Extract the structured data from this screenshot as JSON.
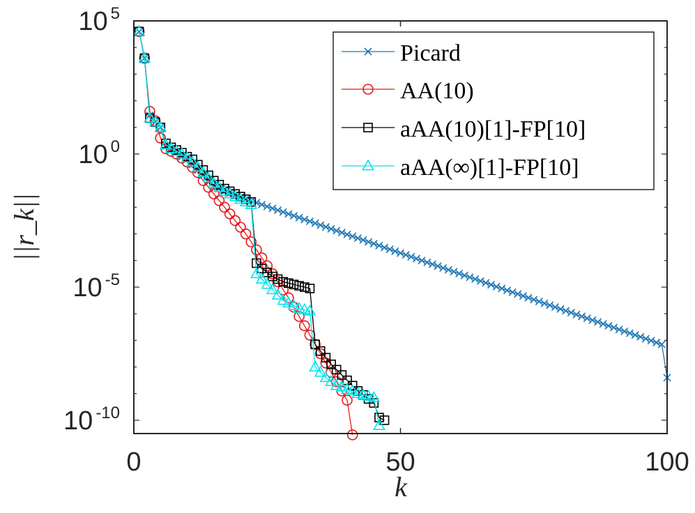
{
  "chart_data": {
    "type": "line",
    "title": "",
    "xlabel": "k",
    "ylabel": "||r_k||",
    "xlim": [
      0,
      100
    ],
    "ylim_log10": [
      -10.5,
      5.0
    ],
    "y_scale": "log",
    "grid": false,
    "legend_position": "top-right",
    "x_ticks": [
      {
        "value": 0,
        "label": "0"
      },
      {
        "value": 50,
        "label": "50"
      },
      {
        "value": 100,
        "label": "100"
      }
    ],
    "y_ticks": [
      {
        "value": 5,
        "base": "10",
        "exp": "5"
      },
      {
        "value": 0,
        "base": "10",
        "exp": "0"
      },
      {
        "value": -5,
        "base": "10",
        "exp": "-5"
      },
      {
        "value": -10,
        "base": "10",
        "exp": "-10"
      }
    ],
    "series": [
      {
        "name": "Picard",
        "color": "#1f77b4",
        "marker": "x",
        "x": [
          1,
          2,
          3,
          4,
          5,
          6,
          7,
          8,
          9,
          10,
          11,
          12,
          13,
          14,
          15,
          16,
          17,
          18,
          19,
          20,
          21,
          22,
          23,
          24,
          25,
          26,
          27,
          28,
          29,
          30,
          31,
          32,
          33,
          34,
          35,
          36,
          37,
          38,
          39,
          40,
          41,
          42,
          43,
          44,
          45,
          46,
          47,
          48,
          49,
          50,
          51,
          52,
          53,
          54,
          55,
          56,
          57,
          58,
          59,
          60,
          61,
          62,
          63,
          64,
          65,
          66,
          67,
          68,
          69,
          70,
          71,
          72,
          73,
          74,
          75,
          76,
          77,
          78,
          79,
          80,
          81,
          82,
          83,
          84,
          85,
          86,
          87,
          88,
          89,
          90,
          91,
          92,
          93,
          94,
          95,
          96,
          97,
          98,
          99,
          100
        ],
        "y_log10": [
          4.6,
          3.6,
          1.45,
          1.2,
          1.0,
          0.3,
          0.15,
          0.05,
          -0.1,
          -0.2,
          -0.4,
          -0.6,
          -0.8,
          -1.05,
          -1.18,
          -1.3,
          -1.38,
          -1.46,
          -1.54,
          -1.62,
          -1.7,
          -1.77,
          -1.83,
          -1.9,
          -1.97,
          -2.04,
          -2.11,
          -2.18,
          -2.25,
          -2.32,
          -2.39,
          -2.46,
          -2.53,
          -2.6,
          -2.67,
          -2.74,
          -2.81,
          -2.88,
          -2.95,
          -3.02,
          -3.09,
          -3.16,
          -3.23,
          -3.3,
          -3.37,
          -3.44,
          -3.51,
          -3.58,
          -3.65,
          -3.72,
          -3.79,
          -3.86,
          -3.93,
          -4.0,
          -4.07,
          -4.14,
          -4.21,
          -4.28,
          -4.35,
          -4.42,
          -4.49,
          -4.56,
          -4.63,
          -4.7,
          -4.77,
          -4.84,
          -4.91,
          -4.98,
          -5.05,
          -5.12,
          -5.19,
          -5.26,
          -5.33,
          -5.4,
          -5.47,
          -5.54,
          -5.61,
          -5.68,
          -5.75,
          -5.82,
          -5.89,
          -5.96,
          -6.03,
          -6.1,
          -6.17,
          -6.24,
          -6.31,
          -6.38,
          -6.45,
          -6.52,
          -6.59,
          -6.66,
          -6.73,
          -6.8,
          -6.87,
          -6.94,
          -7.01,
          -7.08,
          -7.15,
          -8.4
        ]
      },
      {
        "name": "AA(10)",
        "color": "#e41a1c",
        "marker": "o",
        "x": [
          1,
          2,
          3,
          4,
          5,
          6,
          7,
          8,
          9,
          10,
          11,
          12,
          13,
          14,
          15,
          16,
          17,
          18,
          19,
          20,
          21,
          22,
          23,
          24,
          25,
          26,
          27,
          28,
          29,
          30,
          31,
          32,
          33,
          34,
          35,
          36,
          37,
          38,
          39,
          40,
          41
        ],
        "y_log10": [
          4.6,
          3.6,
          1.6,
          1.25,
          0.6,
          0.2,
          0.1,
          0.0,
          -0.15,
          -0.3,
          -0.5,
          -0.7,
          -1.0,
          -1.25,
          -1.5,
          -1.75,
          -2.0,
          -2.25,
          -2.5,
          -2.75,
          -3.0,
          -3.3,
          -3.6,
          -3.9,
          -4.2,
          -4.5,
          -4.8,
          -5.1,
          -5.4,
          -5.75,
          -6.1,
          -6.45,
          -6.8,
          -7.15,
          -7.5,
          -7.85,
          -8.2,
          -8.55,
          -8.9,
          -9.25,
          -10.55
        ]
      },
      {
        "name": "aAA(10)[1]-FP[10]",
        "color": "#000000",
        "marker": "s",
        "x": [
          1,
          2,
          3,
          4,
          5,
          6,
          7,
          8,
          9,
          10,
          11,
          12,
          13,
          14,
          15,
          16,
          17,
          18,
          19,
          20,
          21,
          22,
          23,
          24,
          25,
          26,
          27,
          28,
          29,
          30,
          31,
          32,
          33,
          34,
          35,
          36,
          37,
          38,
          39,
          40,
          41,
          42,
          43,
          44,
          45,
          46,
          47
        ],
        "y_log10": [
          4.6,
          3.6,
          1.35,
          1.2,
          1.0,
          0.4,
          0.25,
          0.15,
          0.05,
          -0.1,
          -0.2,
          -0.4,
          -0.6,
          -0.8,
          -1.0,
          -1.15,
          -1.3,
          -1.4,
          -1.5,
          -1.6,
          -1.7,
          -1.8,
          -4.1,
          -4.3,
          -4.45,
          -4.6,
          -4.7,
          -4.8,
          -4.85,
          -4.9,
          -4.95,
          -5.0,
          -5.05,
          -7.15,
          -7.4,
          -7.65,
          -7.9,
          -8.1,
          -8.3,
          -8.5,
          -8.7,
          -8.9,
          -9.05,
          -9.2,
          -9.35,
          -9.9,
          -10.0
        ]
      },
      {
        "name": "aAA(∞)[1]-FP[10]",
        "color": "#00e5ee",
        "marker": "^",
        "x": [
          1,
          2,
          3,
          4,
          5,
          6,
          7,
          8,
          9,
          10,
          11,
          12,
          13,
          14,
          15,
          16,
          17,
          18,
          19,
          20,
          21,
          22,
          23,
          24,
          25,
          26,
          27,
          28,
          29,
          30,
          31,
          32,
          33,
          34,
          35,
          36,
          37,
          38,
          39,
          40,
          41,
          42,
          43,
          44,
          45,
          46
        ],
        "y_log10": [
          4.6,
          3.6,
          1.35,
          1.2,
          1.0,
          0.35,
          0.2,
          0.1,
          0.0,
          -0.15,
          -0.3,
          -0.5,
          -0.7,
          -0.9,
          -1.1,
          -1.25,
          -1.4,
          -1.5,
          -1.6,
          -1.7,
          -1.8,
          -1.9,
          -4.5,
          -4.7,
          -4.9,
          -5.1,
          -5.3,
          -5.5,
          -5.6,
          -5.7,
          -5.8,
          -5.85,
          -5.9,
          -8.0,
          -8.2,
          -8.4,
          -8.55,
          -8.7,
          -8.75,
          -8.85,
          -8.9,
          -9.0,
          -9.05,
          -9.1,
          -9.15,
          -10.2
        ]
      }
    ]
  }
}
